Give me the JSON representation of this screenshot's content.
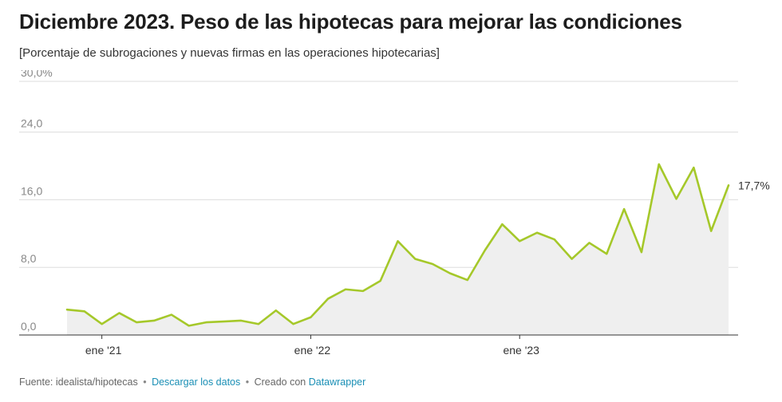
{
  "header": {
    "title": "Diciembre 2023. Peso de las hipotecas para mejorar las condiciones",
    "subtitle": "[Porcentaje de subrogaciones y nuevas firmas en las operaciones hipotecarias]"
  },
  "footer": {
    "source_text": "Fuente: idealista/hipotecas",
    "separator": "•",
    "download_link": "Descargar los datos",
    "created_with_text": "Creado con",
    "datawrapper_link": "Datawrapper"
  },
  "colors": {
    "line": "#a5c82a",
    "area": "#efefef",
    "grid": "#dddddd",
    "link": "#1a8fb5"
  },
  "chart_data": {
    "type": "area",
    "x_start": "2020-11",
    "x_step": "1 month",
    "series": [
      {
        "values": [
          3.0,
          2.8,
          1.3,
          2.6,
          1.5,
          1.7,
          2.4,
          1.1,
          1.5,
          1.6,
          1.7,
          1.3,
          2.9,
          1.3,
          2.1,
          4.3,
          5.4,
          5.2,
          6.4,
          11.1,
          9.0,
          8.4,
          7.3,
          6.5,
          10.0,
          13.1,
          11.1,
          12.1,
          11.3,
          9.0,
          10.9,
          9.6,
          14.9,
          9.8,
          20.2,
          16.1,
          19.8,
          12.3,
          17.7
        ]
      }
    ],
    "x_ticks": [
      {
        "index": 2,
        "label": "ene '21"
      },
      {
        "index": 14,
        "label": "ene '22"
      },
      {
        "index": 26,
        "label": "ene '23"
      }
    ],
    "y_ticks": [
      {
        "value": 0,
        "label": "0,0"
      },
      {
        "value": 8,
        "label": "8,0"
      },
      {
        "value": 16,
        "label": "16,0"
      },
      {
        "value": 24,
        "label": "24,0"
      },
      {
        "value": 30,
        "label": "30,0%"
      }
    ],
    "ylim": [
      0,
      30
    ],
    "end_label": "17,7%",
    "grid": true,
    "legend": "none"
  }
}
